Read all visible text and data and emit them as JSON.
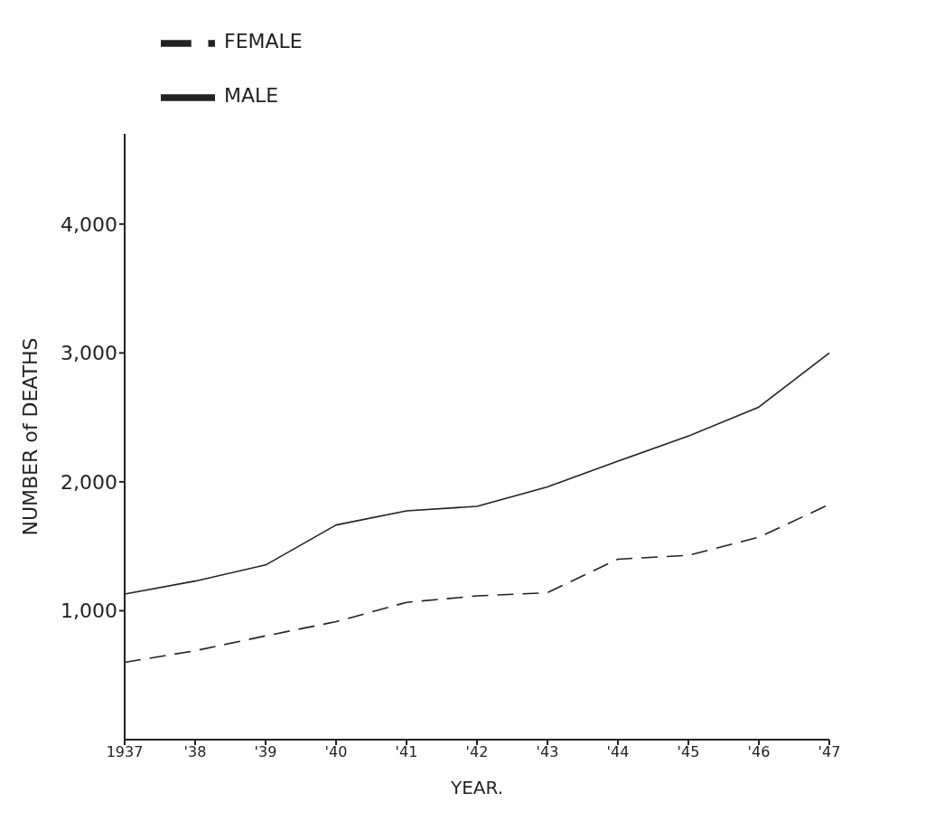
{
  "chart_data": {
    "type": "line",
    "xlabel": "YEAR.",
    "ylabel": "NUMBER of DEATHS",
    "categories": [
      "1937",
      "'38",
      "'39",
      "'40",
      "'41",
      "'42",
      "'43",
      "'44",
      "'45",
      "'46",
      "'47"
    ],
    "series": [
      {
        "name": "MALE",
        "color": "#222222",
        "line_style": "solid",
        "values": [
          1130,
          1230,
          1355,
          1665,
          1775,
          1810,
          1960,
          2160,
          2355,
          2580,
          3000
        ]
      },
      {
        "name": "FEMALE",
        "color": "#222222",
        "line_style": "dashed",
        "values": [
          600,
          690,
          805,
          915,
          1065,
          1115,
          1140,
          1400,
          1430,
          1570,
          1825
        ]
      }
    ],
    "ylim": [
      0,
      4700
    ],
    "yticks": [
      {
        "value": 1000,
        "label": "1,000"
      },
      {
        "value": 2000,
        "label": "2,000"
      },
      {
        "value": 3000,
        "label": "3,000"
      },
      {
        "value": 4000,
        "label": "4,000"
      }
    ],
    "grid": false,
    "legend": "top left",
    "marker": "none"
  }
}
